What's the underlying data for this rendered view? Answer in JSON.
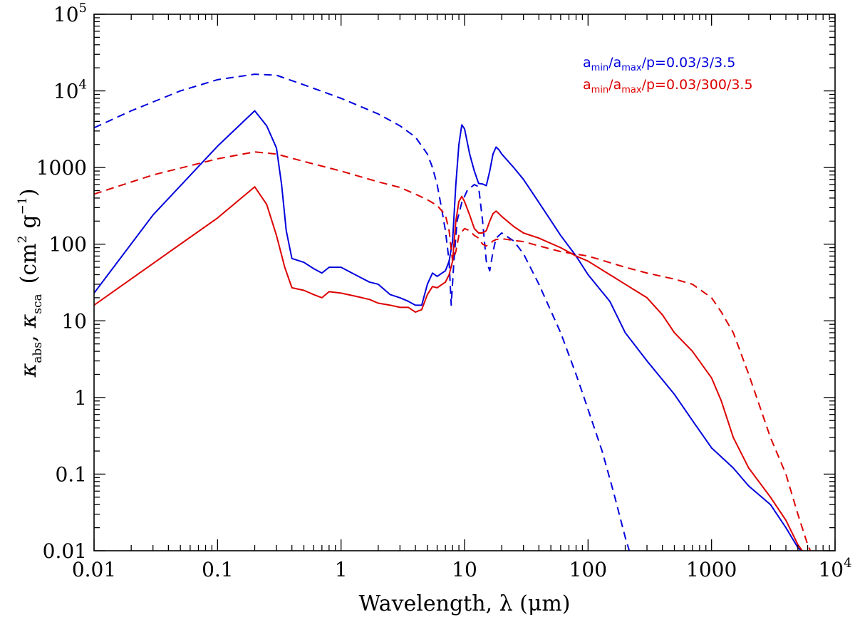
{
  "chart_data": {
    "type": "line",
    "title": "",
    "xlabel": "Wavelength, λ (μm)",
    "ylabel": "κabs, κsca (cm² g⁻¹)",
    "xscale": "log",
    "yscale": "log",
    "xlim": [
      0.01,
      10000
    ],
    "ylim": [
      0.01,
      100000
    ],
    "x_ticks": [
      {
        "value": 0.01,
        "label": "0.01"
      },
      {
        "value": 0.1,
        "label": "0.1"
      },
      {
        "value": 1,
        "label": "1"
      },
      {
        "value": 10,
        "label": "10"
      },
      {
        "value": 100,
        "label": "100"
      },
      {
        "value": 1000,
        "label": "1000"
      },
      {
        "value": 10000,
        "label": "10",
        "exp": "4"
      }
    ],
    "y_ticks": [
      {
        "value": 0.01,
        "label": "0.01"
      },
      {
        "value": 0.1,
        "label": "0.1"
      },
      {
        "value": 1,
        "label": "1"
      },
      {
        "value": 10,
        "label": "10"
      },
      {
        "value": 100,
        "label": "100"
      },
      {
        "value": 1000,
        "label": "1000"
      },
      {
        "value": 10000,
        "label": "10",
        "exp": "4"
      },
      {
        "value": 100000,
        "label": "10",
        "exp": "5"
      }
    ],
    "axis_labels": {
      "x": "Wavelength, λ (μm)",
      "y_kappa": "κ",
      "y_abs": "abs",
      "y_sep": ",",
      "y_sca": "sca",
      "y_units_open": "(cm",
      "y_units_sq": "2",
      "y_units_g": "g",
      "y_units_exp": "−1",
      "y_units_close": ")"
    },
    "legend": {
      "position": "top-right",
      "entries": [
        {
          "a": "a",
          "min": "min",
          "slash": "/",
          "max": "max",
          "rest": "/p=0.03/3/3.5",
          "color": "#0000dd"
        },
        {
          "a": "a",
          "min": "min",
          "slash": "/",
          "max": "max",
          "rest": "/p=0.03/300/3.5",
          "color": "#dd0000"
        }
      ]
    },
    "series": [
      {
        "name": "κabs, amax=3",
        "color": "#0000dd",
        "dash": "solid",
        "points": [
          [
            0.01,
            23
          ],
          [
            0.03,
            240
          ],
          [
            0.1,
            1900
          ],
          [
            0.2,
            5500
          ],
          [
            0.25,
            3500
          ],
          [
            0.3,
            1800
          ],
          [
            0.33,
            600
          ],
          [
            0.36,
            150
          ],
          [
            0.4,
            65
          ],
          [
            0.5,
            58
          ],
          [
            0.6,
            48
          ],
          [
            0.7,
            42
          ],
          [
            0.8,
            50
          ],
          [
            1,
            50
          ],
          [
            1.3,
            40
          ],
          [
            1.7,
            32
          ],
          [
            2,
            30
          ],
          [
            2.5,
            22
          ],
          [
            3,
            20
          ],
          [
            3.5,
            18
          ],
          [
            4,
            16
          ],
          [
            4.5,
            16
          ],
          [
            5,
            30
          ],
          [
            5.5,
            42
          ],
          [
            6,
            38
          ],
          [
            7,
            45
          ],
          [
            7.5,
            60
          ],
          [
            8,
            110
          ],
          [
            8.5,
            600
          ],
          [
            9,
            2000
          ],
          [
            9.5,
            3600
          ],
          [
            10,
            3200
          ],
          [
            11,
            1500
          ],
          [
            12,
            900
          ],
          [
            13,
            620
          ],
          [
            14,
            610
          ],
          [
            15,
            580
          ],
          [
            16,
            900
          ],
          [
            17,
            1500
          ],
          [
            18,
            1850
          ],
          [
            19,
            1700
          ],
          [
            20,
            1500
          ],
          [
            25,
            1000
          ],
          [
            30,
            700
          ],
          [
            40,
            350
          ],
          [
            60,
            130
          ],
          [
            80,
            70
          ],
          [
            100,
            40
          ],
          [
            150,
            18
          ],
          [
            200,
            7
          ],
          [
            300,
            3
          ],
          [
            500,
            1.1
          ],
          [
            700,
            0.5
          ],
          [
            1000,
            0.22
          ],
          [
            1500,
            0.12
          ],
          [
            2000,
            0.07
          ],
          [
            3000,
            0.04
          ],
          [
            4000,
            0.02
          ],
          [
            5000,
            0.011
          ],
          [
            5500,
            0.0095
          ]
        ]
      },
      {
        "name": "κsca, amax=3",
        "color": "#0000dd",
        "dash": "dashed",
        "points": [
          [
            0.01,
            3300
          ],
          [
            0.02,
            5500
          ],
          [
            0.05,
            10000
          ],
          [
            0.1,
            14000
          ],
          [
            0.2,
            16500
          ],
          [
            0.3,
            16000
          ],
          [
            0.5,
            12000
          ],
          [
            1,
            8000
          ],
          [
            2,
            5000
          ],
          [
            3,
            3500
          ],
          [
            4,
            2500
          ],
          [
            5,
            1500
          ],
          [
            5.5,
            1000
          ],
          [
            6,
            600
          ],
          [
            6.5,
            300
          ],
          [
            7,
            150
          ],
          [
            7.5,
            60
          ],
          [
            7.8,
            16
          ],
          [
            8.2,
            60
          ],
          [
            8.7,
            200
          ],
          [
            9.5,
            350
          ],
          [
            10.5,
            500
          ],
          [
            12,
            600
          ],
          [
            13,
            560
          ],
          [
            14,
            200
          ],
          [
            15,
            60
          ],
          [
            16,
            45
          ],
          [
            17,
            80
          ],
          [
            18,
            120
          ],
          [
            20,
            140
          ],
          [
            25,
            110
          ],
          [
            30,
            75
          ],
          [
            40,
            30
          ],
          [
            60,
            7
          ],
          [
            80,
            2
          ],
          [
            100,
            0.7
          ],
          [
            130,
            0.2
          ],
          [
            160,
            0.06
          ],
          [
            200,
            0.015
          ],
          [
            220,
            0.009
          ]
        ]
      },
      {
        "name": "κabs, amax=300",
        "color": "#dd0000",
        "dash": "solid",
        "points": [
          [
            0.01,
            16
          ],
          [
            0.05,
            100
          ],
          [
            0.1,
            220
          ],
          [
            0.2,
            560
          ],
          [
            0.25,
            330
          ],
          [
            0.3,
            130
          ],
          [
            0.35,
            50
          ],
          [
            0.4,
            27
          ],
          [
            0.5,
            25
          ],
          [
            0.6,
            22
          ],
          [
            0.7,
            20
          ],
          [
            0.8,
            24
          ],
          [
            1,
            23
          ],
          [
            1.3,
            21
          ],
          [
            1.7,
            19
          ],
          [
            2,
            17
          ],
          [
            2.5,
            16
          ],
          [
            3,
            15
          ],
          [
            3.5,
            15
          ],
          [
            4,
            13
          ],
          [
            4.5,
            14
          ],
          [
            5,
            22
          ],
          [
            5.5,
            28
          ],
          [
            6,
            27
          ],
          [
            7,
            32
          ],
          [
            7.5,
            40
          ],
          [
            8,
            60
          ],
          [
            8.5,
            200
          ],
          [
            9,
            360
          ],
          [
            9.5,
            420
          ],
          [
            10,
            360
          ],
          [
            11,
            240
          ],
          [
            12,
            160
          ],
          [
            13,
            140
          ],
          [
            14,
            140
          ],
          [
            15,
            150
          ],
          [
            16,
            200
          ],
          [
            17,
            250
          ],
          [
            18,
            270
          ],
          [
            19,
            250
          ],
          [
            20,
            230
          ],
          [
            25,
            170
          ],
          [
            30,
            140
          ],
          [
            40,
            120
          ],
          [
            60,
            90
          ],
          [
            80,
            70
          ],
          [
            100,
            60
          ],
          [
            150,
            40
          ],
          [
            200,
            30
          ],
          [
            300,
            20
          ],
          [
            400,
            12
          ],
          [
            500,
            7
          ],
          [
            700,
            4
          ],
          [
            1000,
            1.8
          ],
          [
            1200,
            0.9
          ],
          [
            1500,
            0.3
          ],
          [
            2000,
            0.12
          ],
          [
            3000,
            0.05
          ],
          [
            4000,
            0.025
          ],
          [
            5000,
            0.012
          ],
          [
            6000,
            0.008
          ]
        ]
      },
      {
        "name": "κsca, amax=300",
        "color": "#dd0000",
        "dash": "dashed",
        "points": [
          [
            0.01,
            450
          ],
          [
            0.03,
            800
          ],
          [
            0.1,
            1300
          ],
          [
            0.2,
            1600
          ],
          [
            0.3,
            1500
          ],
          [
            0.5,
            1200
          ],
          [
            1,
            900
          ],
          [
            2,
            650
          ],
          [
            3,
            550
          ],
          [
            4,
            450
          ],
          [
            5,
            380
          ],
          [
            6,
            320
          ],
          [
            7,
            240
          ],
          [
            7.5,
            150
          ],
          [
            8,
            60
          ],
          [
            8.5,
            80
          ],
          [
            9,
            130
          ],
          [
            10,
            160
          ],
          [
            11,
            150
          ],
          [
            12,
            130
          ],
          [
            13,
            120
          ],
          [
            14,
            100
          ],
          [
            15,
            95
          ],
          [
            16,
            100
          ],
          [
            17,
            110
          ],
          [
            18,
            115
          ],
          [
            20,
            118
          ],
          [
            25,
            112
          ],
          [
            30,
            108
          ],
          [
            40,
            95
          ],
          [
            60,
            80
          ],
          [
            100,
            70
          ],
          [
            200,
            50
          ],
          [
            300,
            42
          ],
          [
            500,
            35
          ],
          [
            700,
            30
          ],
          [
            1000,
            20
          ],
          [
            1200,
            13
          ],
          [
            1500,
            7
          ],
          [
            2000,
            2
          ],
          [
            3000,
            0.3
          ],
          [
            4000,
            0.1
          ],
          [
            5000,
            0.03
          ],
          [
            6000,
            0.012
          ],
          [
            6500,
            0.009
          ]
        ]
      }
    ]
  }
}
